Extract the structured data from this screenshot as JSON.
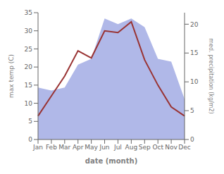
{
  "chart_data": {
    "type": "line",
    "xlabel": "date (month)",
    "ylabel": "max temp (C)",
    "y2label": "med. precipitation (kg/m2)",
    "categories": [
      "Jan",
      "Feb",
      "Mar",
      "Apr",
      "May",
      "Jun",
      "Jul",
      "Aug",
      "Sep",
      "Oct",
      "Nov",
      "Dec"
    ],
    "series": [
      {
        "type": "area",
        "axis": "y2",
        "color": "#b0b8e8",
        "values": [
          9.0,
          8.5,
          9.0,
          13.0,
          14.0,
          21.0,
          20.0,
          21.0,
          19.5,
          14.0,
          13.5,
          7.0
        ]
      },
      {
        "type": "line",
        "color": "#993333",
        "values": [
          6.5,
          12.0,
          17.5,
          24.5,
          22.5,
          30.0,
          29.5,
          32.5,
          22.0,
          15.0,
          9.0,
          6.5
        ]
      }
    ],
    "ylim": [
      0,
      35
    ],
    "yticks": [
      0,
      5,
      10,
      15,
      20,
      25,
      30,
      35
    ],
    "y2lim": [
      0,
      22
    ],
    "y2ticks": [
      0,
      5,
      10,
      15,
      20
    ]
  }
}
